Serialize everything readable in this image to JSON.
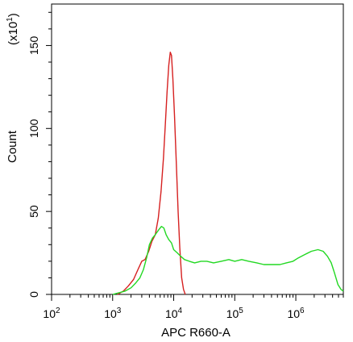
{
  "chart_data": {
    "type": "line",
    "xlabel": "APC R660-A",
    "ylabel": "Count",
    "y_multiplier": "(x10",
    "y_multiplier_exp": "1",
    "y_multiplier_close": ")",
    "x_scale": "log",
    "xlim": [
      100,
      6000000
    ],
    "ylim": [
      0,
      175
    ],
    "x_ticks": [
      {
        "value": 100,
        "base": "10",
        "exp": "2"
      },
      {
        "value": 1000,
        "base": "10",
        "exp": "3"
      },
      {
        "value": 10000,
        "base": "10",
        "exp": "4"
      },
      {
        "value": 100000,
        "base": "10",
        "exp": "5"
      },
      {
        "value": 1000000,
        "base": "10",
        "exp": "6"
      }
    ],
    "y_ticks": [
      0,
      50,
      100,
      150
    ],
    "y_tick_labels": [
      "0",
      "50",
      "100",
      "150"
    ],
    "grid": false,
    "series": [
      {
        "color": "#d62020",
        "points": [
          [
            1200,
            0
          ],
          [
            1500,
            2
          ],
          [
            1800,
            5
          ],
          [
            2200,
            9
          ],
          [
            2600,
            15
          ],
          [
            3000,
            20
          ],
          [
            3400,
            21
          ],
          [
            3900,
            26
          ],
          [
            4400,
            32
          ],
          [
            5000,
            36
          ],
          [
            5600,
            46
          ],
          [
            6200,
            62
          ],
          [
            6800,
            82
          ],
          [
            7300,
            103
          ],
          [
            7800,
            122
          ],
          [
            8300,
            138
          ],
          [
            8800,
            146
          ],
          [
            9200,
            144
          ],
          [
            9700,
            130
          ],
          [
            10300,
            108
          ],
          [
            11000,
            80
          ],
          [
            11800,
            50
          ],
          [
            12600,
            28
          ],
          [
            13500,
            10
          ],
          [
            14500,
            3
          ],
          [
            15500,
            0
          ]
        ]
      },
      {
        "color": "#22d822",
        "points": [
          [
            1000,
            0
          ],
          [
            1600,
            2
          ],
          [
            2000,
            4
          ],
          [
            2400,
            7
          ],
          [
            2800,
            10
          ],
          [
            3200,
            15
          ],
          [
            3600,
            22
          ],
          [
            4000,
            30
          ],
          [
            4500,
            34
          ],
          [
            5000,
            36
          ],
          [
            5700,
            39
          ],
          [
            6300,
            41
          ],
          [
            6900,
            40
          ],
          [
            7500,
            36
          ],
          [
            8300,
            33
          ],
          [
            9200,
            31
          ],
          [
            10000,
            27
          ],
          [
            11500,
            25
          ],
          [
            13000,
            23
          ],
          [
            15000,
            21
          ],
          [
            18000,
            20
          ],
          [
            22000,
            19
          ],
          [
            28000,
            20
          ],
          [
            35000,
            20
          ],
          [
            45000,
            19
          ],
          [
            60000,
            20
          ],
          [
            80000,
            21
          ],
          [
            100000,
            20
          ],
          [
            130000,
            21
          ],
          [
            170000,
            20
          ],
          [
            230000,
            19
          ],
          [
            300000,
            18
          ],
          [
            400000,
            18
          ],
          [
            550000,
            18
          ],
          [
            700000,
            19
          ],
          [
            900000,
            20
          ],
          [
            1100000,
            22
          ],
          [
            1400000,
            24
          ],
          [
            1800000,
            26
          ],
          [
            2300000,
            27
          ],
          [
            2800000,
            26
          ],
          [
            3300000,
            23
          ],
          [
            3800000,
            19
          ],
          [
            4300000,
            13
          ],
          [
            4900000,
            6
          ],
          [
            5500000,
            3
          ],
          [
            6000000,
            2
          ]
        ]
      }
    ]
  }
}
